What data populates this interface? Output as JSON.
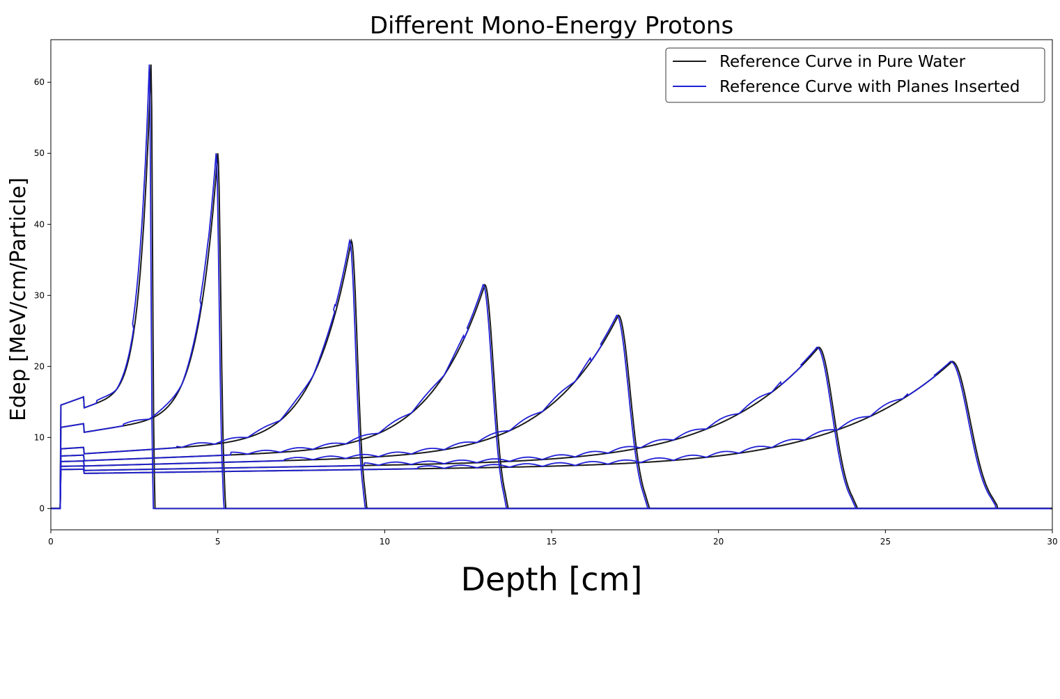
{
  "chart_data": {
    "type": "line",
    "title": "Different Mono-Energy Protons",
    "xlabel": "Depth [cm]",
    "ylabel": "Edep [MeV/cm/Particle]",
    "xlim": [
      0,
      30
    ],
    "ylim": [
      -3,
      66
    ],
    "xticks": [
      0,
      5,
      10,
      15,
      20,
      25,
      30
    ],
    "yticks": [
      0,
      10,
      20,
      30,
      40,
      50,
      60
    ],
    "grid": false,
    "legend": {
      "placement": "top-right",
      "entries": [
        {
          "label": "Reference Curve in Pure Water",
          "color": "#1a1a1a"
        },
        {
          "label": "Reference Curve with Planes Inserted",
          "color": "#1f1fd6"
        }
      ]
    },
    "curves": [
      {
        "peak_depth": 3.0,
        "peak_value": 62.5,
        "entrance_value": 13.0,
        "range_end": 3.1
      },
      {
        "peak_depth": 5.0,
        "peak_value": 50.0,
        "entrance_value": 10.2,
        "range_end": 5.2
      },
      {
        "peak_depth": 9.0,
        "peak_value": 37.7,
        "entrance_value": 7.5,
        "range_end": 9.4
      },
      {
        "peak_depth": 13.0,
        "peak_value": 31.5,
        "entrance_value": 6.6,
        "range_end": 13.6
      },
      {
        "peak_depth": 17.0,
        "peak_value": 27.2,
        "entrance_value": 5.9,
        "range_end": 17.8
      },
      {
        "peak_depth": 23.0,
        "peak_value": 22.7,
        "entrance_value": 5.3,
        "range_end": 24.0
      },
      {
        "peak_depth": 27.0,
        "peak_value": 20.7,
        "entrance_value": 4.9,
        "range_end": 28.2
      }
    ]
  }
}
